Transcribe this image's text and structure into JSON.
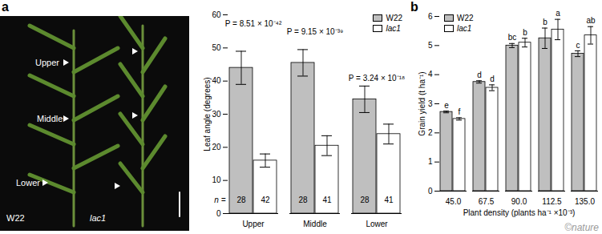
{
  "panel_labels": [
    "a",
    "b"
  ],
  "credit": "©nature",
  "photo": {
    "leaf_labels": [
      "Upper",
      "Middle",
      "Lower"
    ],
    "genotypes": [
      "W22",
      "lac1"
    ]
  },
  "chart_data": [
    {
      "type": "bar",
      "categories": [
        "Upper",
        "Middle",
        "Lower"
      ],
      "series": [
        {
          "name": "W22",
          "color": "#bfbfbf",
          "values": [
            44,
            45.5,
            34.5
          ],
          "errors": [
            5,
            4,
            4
          ],
          "n": [
            28,
            28,
            28
          ]
        },
        {
          "name": "lac1",
          "color": "#ffffff",
          "values": [
            16,
            20.5,
            24
          ],
          "errors": [
            2,
            3,
            3
          ],
          "n": [
            42,
            41,
            41
          ]
        }
      ],
      "y_label": "Leaf angle (degrees)",
      "ylim": [
        0,
        60
      ],
      "yticks": [
        0,
        10,
        20,
        30,
        40,
        50,
        60
      ],
      "annotations": [
        "P = 8.51 × 10⁻⁴²",
        "P = 9.15 × 10⁻³⁹",
        "P = 3.24 × 10⁻¹⁸"
      ],
      "n_label": "n =",
      "legend": "top-right"
    },
    {
      "type": "bar",
      "categories": [
        "45.0",
        "67.5",
        "90.0",
        "112.5",
        "135.0"
      ],
      "series": [
        {
          "name": "W22",
          "color": "#bfbfbf",
          "values": [
            2.72,
            3.75,
            5.0,
            5.25,
            4.72
          ],
          "errors": [
            0.03,
            0.04,
            0.07,
            0.35,
            0.1
          ],
          "letters": [
            "e",
            "d",
            "bc",
            "b",
            "c"
          ]
        },
        {
          "name": "lac1",
          "color": "#ffffff",
          "values": [
            2.48,
            3.55,
            5.1,
            5.55,
            5.35
          ],
          "errors": [
            0.04,
            0.1,
            0.15,
            0.35,
            0.3
          ],
          "letters": [
            "f",
            "d",
            "b",
            "a",
            "ab"
          ]
        }
      ],
      "x_label": "Plant density (plants ha⁻¹ ×10⁻³)",
      "y_label": "Grain yield (t ha⁻¹)",
      "ylim": [
        0,
        6
      ],
      "yticks": [
        0,
        1,
        2,
        3,
        4,
        5,
        6
      ],
      "legend": "top-left"
    }
  ]
}
